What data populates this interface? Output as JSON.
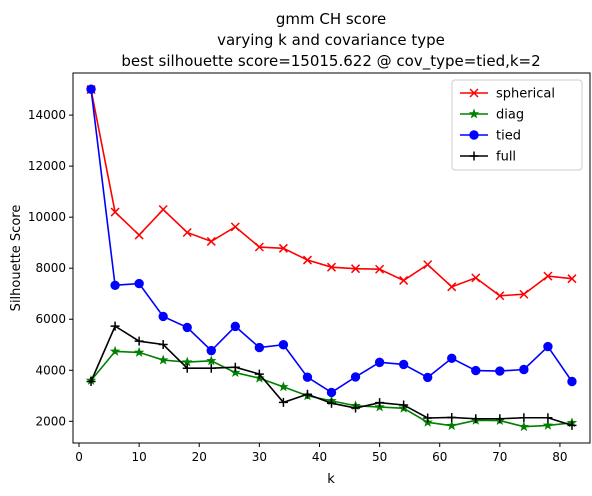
{
  "chart_data": {
    "type": "line",
    "title_lines": [
      "gmm CH score",
      "varying k and covariance type",
      "best silhouette score=15015.622 @ cov_type=tied,k=2"
    ],
    "xlabel": "k",
    "ylabel": "Silhouette Score",
    "xlim": [
      -1,
      85
    ],
    "ylim": [
      1150,
      15650
    ],
    "xticks": [
      0,
      10,
      20,
      30,
      40,
      50,
      60,
      70,
      80
    ],
    "yticks": [
      2000,
      4000,
      6000,
      8000,
      10000,
      12000,
      14000
    ],
    "grid": false,
    "legend_position": "top-right",
    "x": [
      2,
      6,
      10,
      14,
      18,
      22,
      26,
      30,
      34,
      38,
      42,
      46,
      50,
      54,
      58,
      62,
      66,
      70,
      74,
      78,
      82
    ],
    "series": [
      {
        "name": "spherical",
        "color": "#ff0000",
        "marker": "x",
        "values": [
          15000,
          10200,
          9300,
          10300,
          9400,
          9050,
          9620,
          8830,
          8780,
          8320,
          8040,
          7980,
          7960,
          7520,
          8140,
          7270,
          7620,
          6920,
          6980,
          7690,
          7590
        ]
      },
      {
        "name": "diag",
        "color": "#008000",
        "marker": "star",
        "values": [
          3600,
          4740,
          4700,
          4400,
          4320,
          4370,
          3910,
          3690,
          3350,
          3000,
          2800,
          2610,
          2560,
          2510,
          1960,
          1830,
          2040,
          2030,
          1790,
          1840,
          1940
        ]
      },
      {
        "name": "tied",
        "color": "#0000ff",
        "marker": "circle",
        "values": [
          15015.622,
          7330,
          7400,
          6110,
          5680,
          4770,
          5720,
          4890,
          5000,
          3730,
          3130,
          3740,
          4310,
          4230,
          3720,
          4470,
          3990,
          3970,
          4030,
          4930,
          3560
        ]
      },
      {
        "name": "full",
        "color": "#000000",
        "marker": "plus",
        "values": [
          3560,
          5730,
          5140,
          5010,
          4080,
          4080,
          4120,
          3850,
          2740,
          3060,
          2710,
          2520,
          2730,
          2640,
          2130,
          2150,
          2100,
          2100,
          2140,
          2140,
          1840
        ]
      }
    ]
  }
}
